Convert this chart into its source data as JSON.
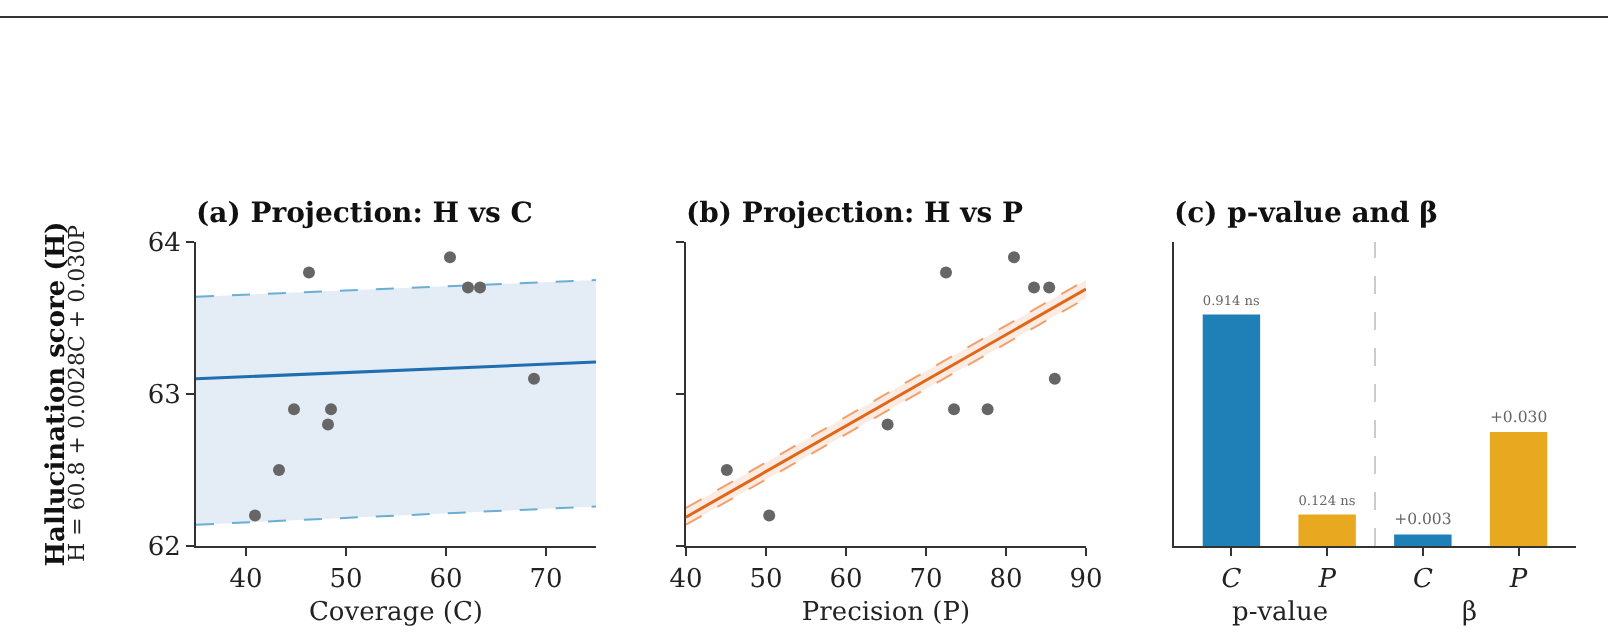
{
  "chart_data": [
    {
      "type": "scatter",
      "title": "(a) Projection: H vs C",
      "xlabel": "Coverage (C)",
      "ylabel": "Hallucination score (H)",
      "annotations": [
        "H = 60.8 + 0.0028C + 0.030P"
      ],
      "xlim": [
        35,
        75
      ],
      "xticks": [
        40,
        50,
        60,
        70
      ],
      "ylim": [
        62,
        64
      ],
      "yticks": [
        62,
        63,
        64
      ],
      "series": [
        {
          "type": "line",
          "color": "#1f6fb0",
          "x": [
            35,
            75
          ],
          "values": [
            63.1,
            63.21
          ],
          "lower": [
            62.14,
            62.26
          ],
          "upper": [
            63.64,
            63.75
          ]
        },
        {
          "type": "line",
          "color": "#6aaed6",
          "line_style": "dashed",
          "x": [
            35,
            75
          ],
          "values": [
            63.64,
            63.75
          ]
        },
        {
          "type": "line",
          "color": "#6aaed6",
          "line_style": "dashed",
          "x": [
            35,
            75
          ],
          "values": [
            62.14,
            62.26
          ]
        },
        {
          "type": "scatter",
          "marker": "circle",
          "color": "#666666",
          "x": [
            40.9,
            43.3,
            44.8,
            46.3,
            48.2,
            48.5,
            60.4,
            62.2,
            63.4,
            68.8
          ],
          "values": [
            62.2,
            62.5,
            62.9,
            63.8,
            62.8,
            62.9,
            63.9,
            63.7,
            63.7,
            63.1
          ]
        }
      ]
    },
    {
      "type": "scatter",
      "title": "(b) Projection: H vs P",
      "xlabel": "Precision (P)",
      "xlim": [
        40,
        90
      ],
      "xticks": [
        40,
        50,
        60,
        70,
        80,
        90
      ],
      "ylim": [
        62,
        64
      ],
      "yticks": [
        62,
        63,
        64
      ],
      "tick_labels": "x",
      "series": [
        {
          "type": "line",
          "color": "#e0661a",
          "x": [
            40,
            90
          ],
          "values": [
            62.19,
            63.69
          ],
          "lower": [
            62.14,
            63.63
          ],
          "upper": [
            62.25,
            63.75
          ]
        },
        {
          "type": "line",
          "color": "#f0a070",
          "line_style": "dashed",
          "x": [
            40,
            90
          ],
          "values": [
            62.25,
            63.75
          ]
        },
        {
          "type": "line",
          "color": "#f0a070",
          "line_style": "dashed",
          "x": [
            40,
            90
          ],
          "values": [
            62.14,
            63.63
          ]
        },
        {
          "type": "scatter",
          "marker": "circle",
          "color": "#666666",
          "x": [
            45.1,
            50.4,
            65.2,
            72.5,
            73.5,
            77.7,
            81.0,
            83.5,
            85.4,
            86.1
          ],
          "values": [
            62.5,
            62.2,
            62.8,
            63.8,
            62.9,
            62.9,
            63.9,
            63.7,
            63.7,
            63.1
          ]
        }
      ]
    },
    {
      "type": "bar",
      "title": "(c) p-value and β",
      "categories": [
        "C",
        "P",
        "C",
        "P"
      ],
      "annotations": [
        "p-value",
        "β"
      ],
      "tick_labels": false,
      "ylim": [
        0,
        1.2
      ],
      "y2lim": [
        0,
        0.08
      ],
      "series": [
        {
          "colors": [
            "#1f80b8",
            "#e8a820",
            null,
            null
          ],
          "values": [
            0.914,
            0.124,
            null,
            null
          ],
          "value_labels": [
            "0.914 ns",
            "0.124 ns",
            null,
            null
          ]
        },
        {
          "axis": "y2",
          "colors": [
            null,
            null,
            "#1f80b8",
            "#e8a820"
          ],
          "values": [
            null,
            null,
            0.003,
            0.03
          ],
          "value_labels": [
            null,
            null,
            "+0.003",
            "+0.030"
          ]
        }
      ]
    }
  ]
}
